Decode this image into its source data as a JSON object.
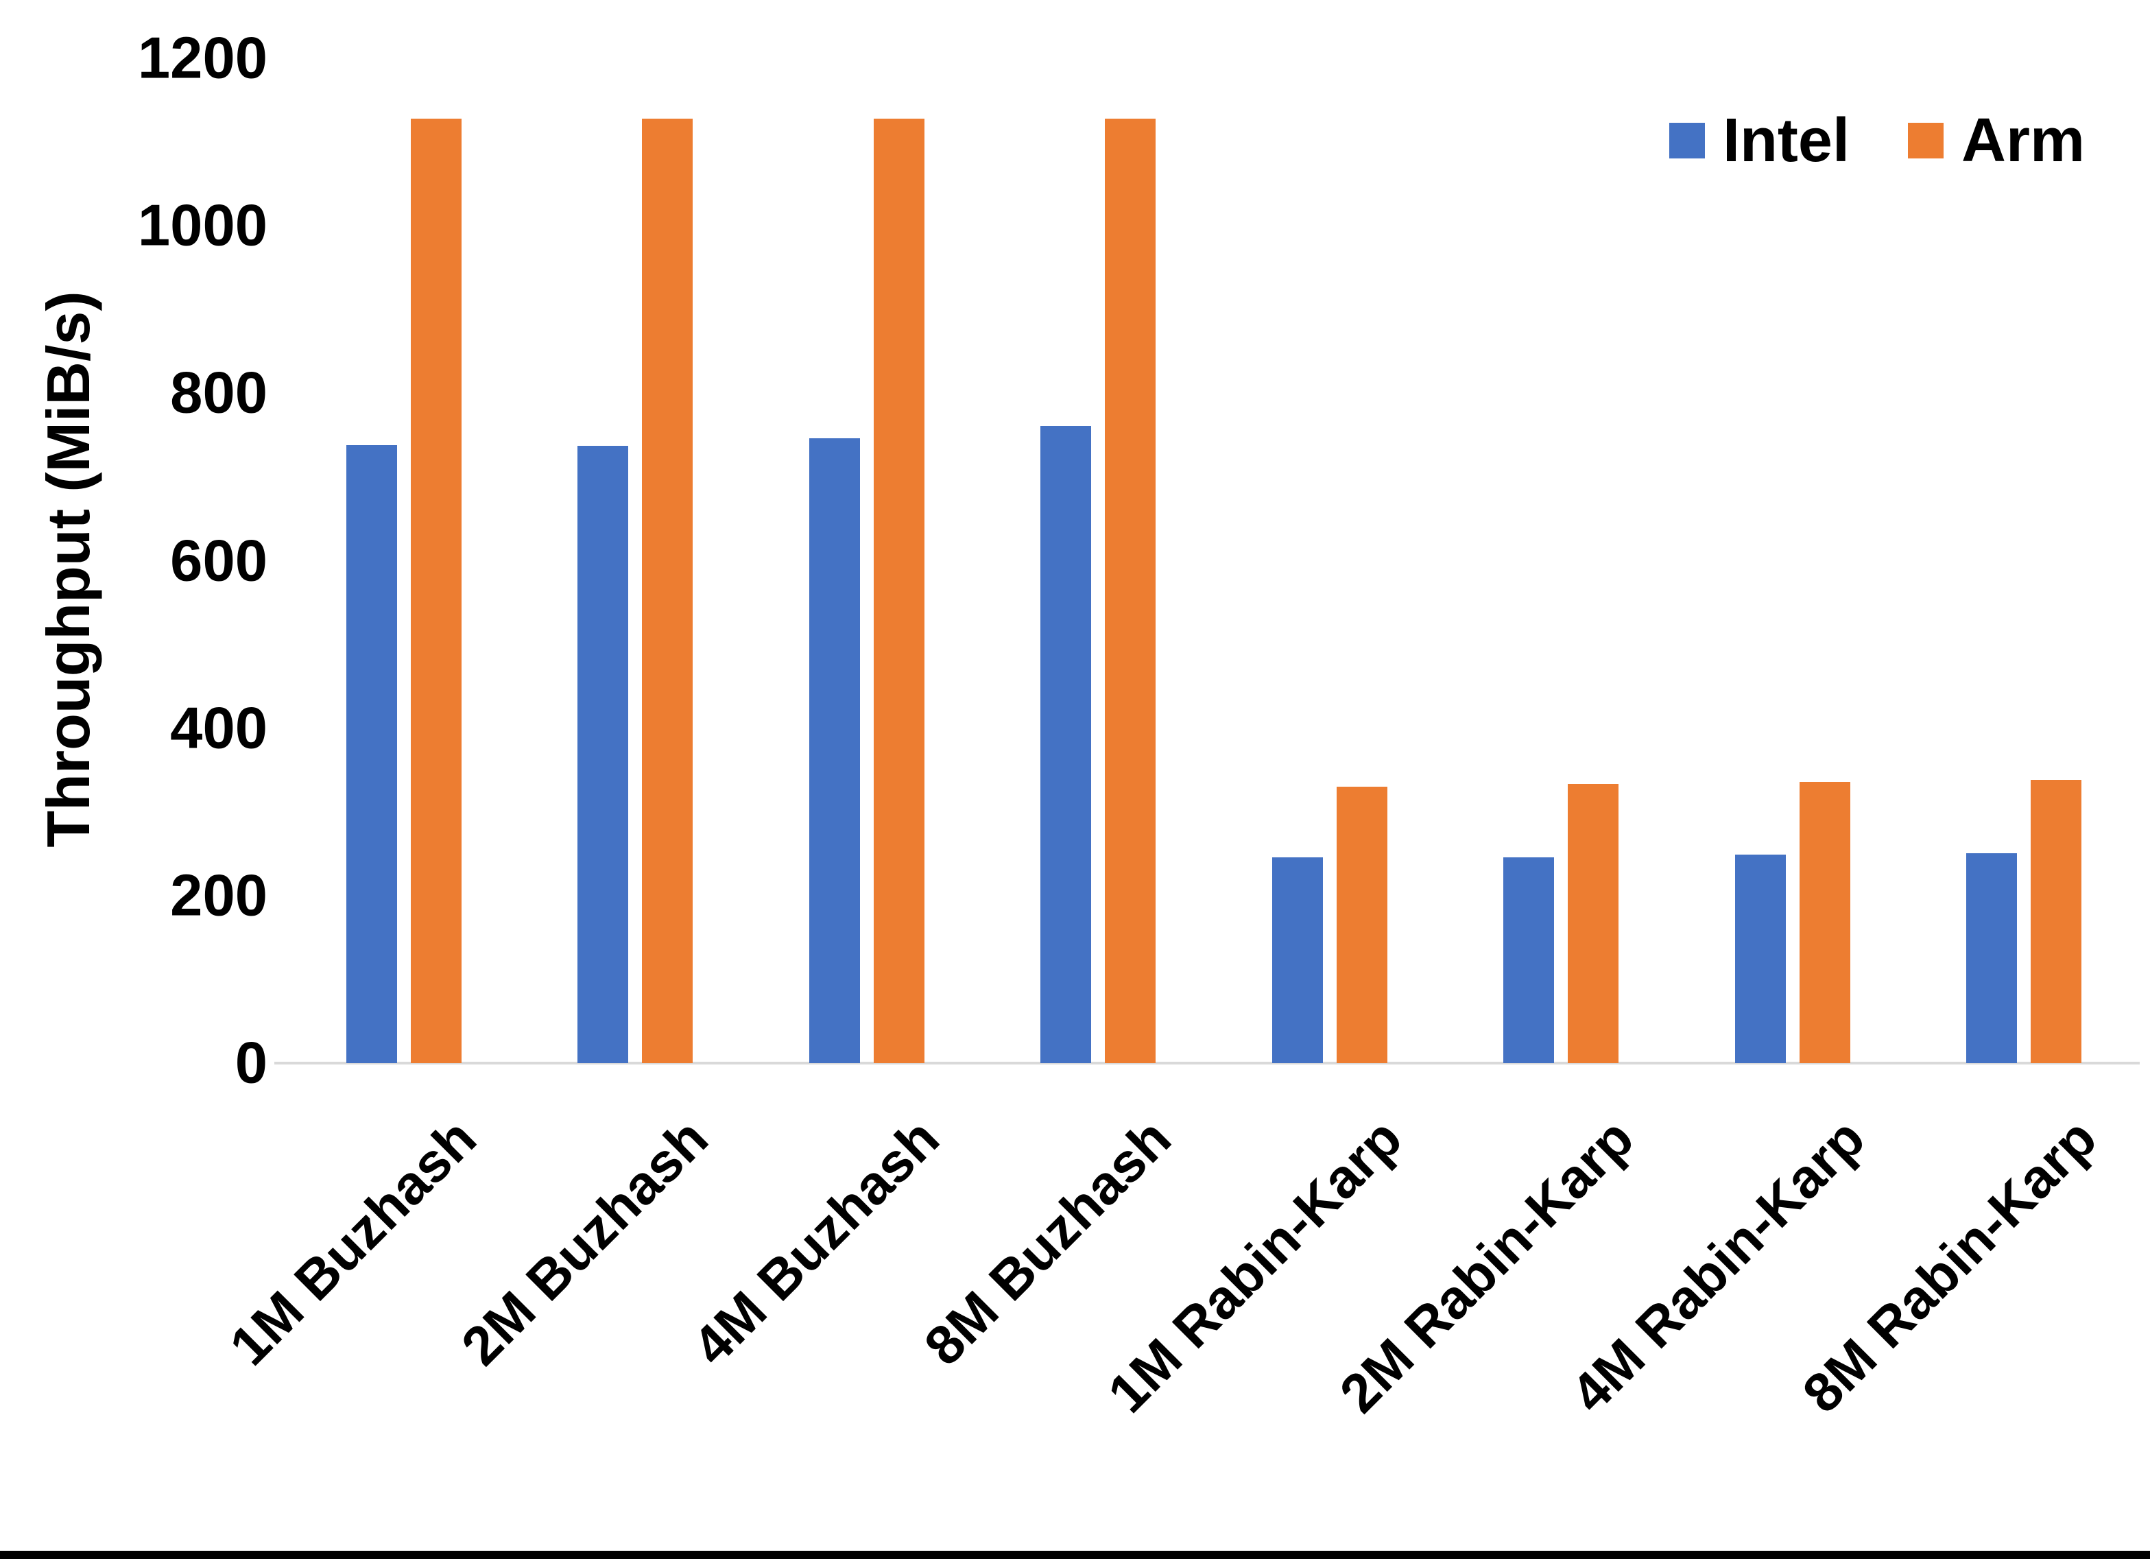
{
  "page": {
    "background": "#ffffff",
    "bottom_border_color": "#000000"
  },
  "chart_data": {
    "type": "bar",
    "title": "",
    "xlabel": "",
    "ylabel": "Throughput (MiB/s)",
    "ylim": [
      0,
      1200
    ],
    "yticks": [
      0,
      200,
      400,
      600,
      800,
      1000,
      1200
    ],
    "grid": false,
    "legend_position": "top-right",
    "axis_line_color": "#d9d9d9",
    "categories": [
      "1M Buzhash",
      "2M Buzhash",
      "4M Buzhash",
      "8M Buzhash",
      "1M Rabin-Karp",
      "2M Rabin-Karp",
      "4M Rabin-Karp",
      "8M Rabin-Karp"
    ],
    "series": [
      {
        "name": "Intel",
        "color": "#4472C4",
        "values": [
          738,
          737,
          746,
          761,
          246,
          246,
          249,
          251
        ]
      },
      {
        "name": "Arm",
        "color": "#ED7D31",
        "values": [
          1128,
          1128,
          1128,
          1128,
          330,
          333,
          336,
          338
        ]
      }
    ]
  }
}
